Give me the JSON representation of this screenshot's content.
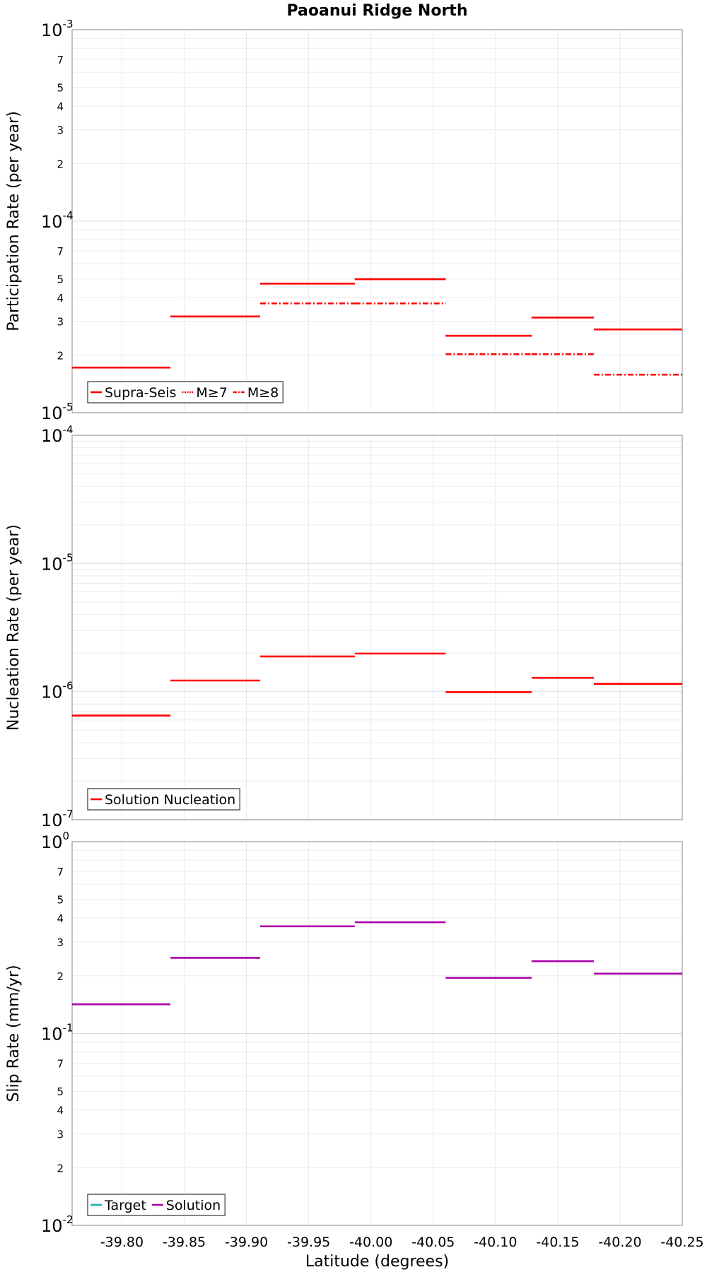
{
  "chart_data": {
    "type": "line",
    "title": "Paoanui Ridge North",
    "xlabel": "Latitude (degrees)",
    "xlim": [
      -39.76,
      -40.25
    ],
    "x_ticks": [
      -39.8,
      -39.85,
      -39.9,
      -39.95,
      -40.0,
      -40.05,
      -40.1,
      -40.15,
      -40.2,
      -40.25
    ],
    "x_tick_labels": [
      "-39.80",
      "-39.85",
      "-39.90",
      "-39.95",
      "-40.00",
      "-40.05",
      "-40.10",
      "-40.15",
      "-40.20",
      "-40.25"
    ],
    "segment_edges": [
      -39.76,
      -39.839,
      -39.911,
      -39.987,
      -40.06,
      -40.129,
      -40.179,
      -40.25
    ],
    "panels": [
      {
        "ylabel": "Participation Rate (per year)",
        "yscale": "log",
        "ylim": [
          1e-05,
          0.001
        ],
        "y_major_labels": [
          {
            "base": "10",
            "exp": "-5"
          },
          {
            "base": "10",
            "exp": "-4"
          },
          {
            "base": "10",
            "exp": "-3"
          }
        ],
        "y_minor_labels": [
          "2",
          "3",
          "4",
          "5",
          "7"
        ],
        "series": [
          {
            "name": "Supra-Seis",
            "style": "solid",
            "color": "#ff0000",
            "values": [
              1.72e-05,
              3.18e-05,
              4.72e-05,
              4.98e-05,
              2.52e-05,
              3.14e-05,
              2.72e-05
            ]
          },
          {
            "name": "M≥7",
            "style": "dotted",
            "color": "#ff0000",
            "values": [
              1.72e-05,
              3.18e-05,
              4.72e-05,
              4.98e-05,
              2.52e-05,
              3.14e-05,
              2.72e-05
            ]
          },
          {
            "name": "M≥8",
            "style": "dashdot",
            "color": "#ff0000",
            "values": [
              null,
              null,
              3.72e-05,
              3.72e-05,
              2.02e-05,
              2.02e-05,
              1.58e-05
            ]
          }
        ]
      },
      {
        "ylabel": "Nucleation Rate (per year)",
        "yscale": "log",
        "ylim": [
          1e-07,
          0.0001
        ],
        "y_major_labels": [
          {
            "base": "10",
            "exp": "-7"
          },
          {
            "base": "10",
            "exp": "-6"
          },
          {
            "base": "10",
            "exp": "-5"
          },
          {
            "base": "10",
            "exp": "-4"
          }
        ],
        "y_minor_labels": [],
        "series": [
          {
            "name": "Solution Nucleation",
            "style": "solid",
            "color": "#ff0000",
            "values": [
              6.5e-07,
              1.22e-06,
              1.88e-06,
              1.98e-06,
              9.9e-07,
              1.28e-06,
              1.15e-06
            ]
          }
        ]
      },
      {
        "ylabel": "Slip Rate (mm/yr)",
        "yscale": "log",
        "ylim": [
          0.01,
          1
        ],
        "y_major_labels": [
          {
            "base": "10",
            "exp": "-2"
          },
          {
            "base": "10",
            "exp": "-1"
          },
          {
            "base": "10",
            "exp": "0"
          }
        ],
        "y_minor_labels": [
          "2",
          "3",
          "4",
          "5",
          "7"
        ],
        "series": [
          {
            "name": "Target",
            "style": "solid",
            "color": "#20b2aa",
            "values": [
              null,
              null,
              null,
              null,
              null,
              null,
              null
            ]
          },
          {
            "name": "Solution",
            "style": "solid",
            "color": "#aa00aa",
            "values": [
              0.142,
              0.248,
              0.362,
              0.38,
              0.195,
              0.238,
              0.205
            ]
          }
        ]
      }
    ]
  }
}
